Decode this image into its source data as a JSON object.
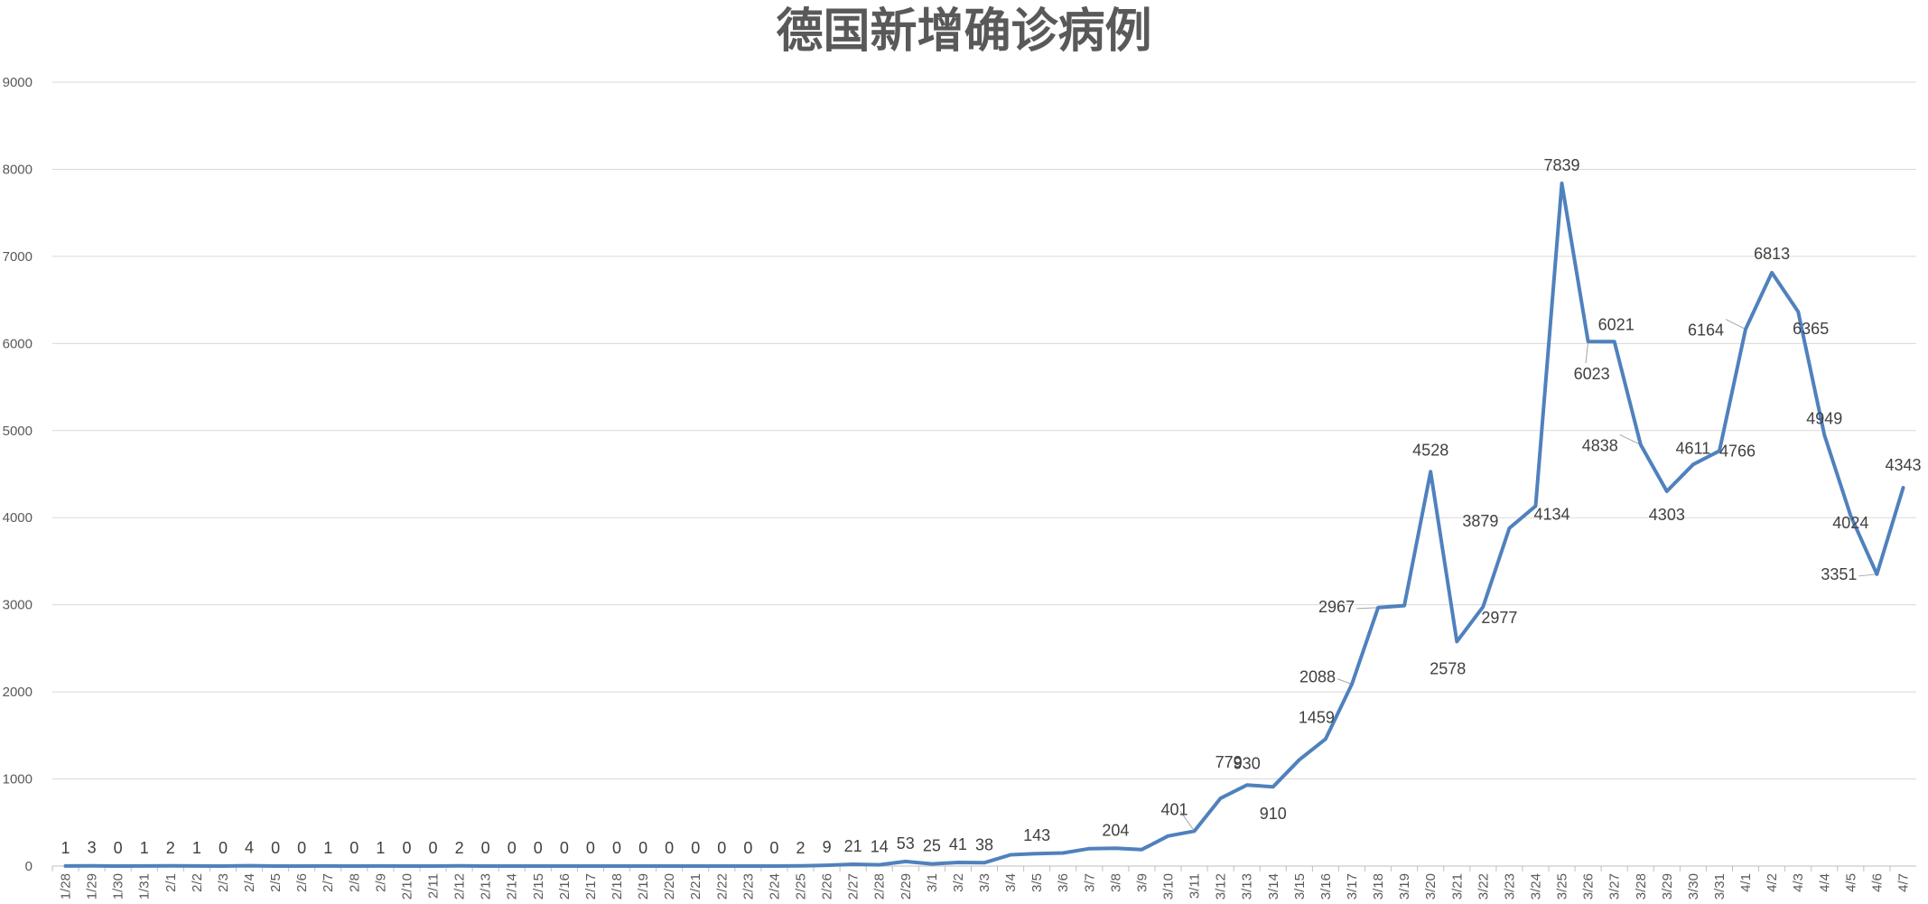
{
  "chart_data": {
    "type": "line",
    "title": "德国新增确诊病例",
    "xlabel": "",
    "ylabel": "",
    "ylim": [
      0,
      9000
    ],
    "yticks": [
      0,
      1000,
      2000,
      3000,
      4000,
      5000,
      6000,
      7000,
      8000,
      9000
    ],
    "grid": true,
    "legend": "none",
    "line_color": "#4F81BD",
    "categories": [
      "1/28",
      "1/29",
      "1/30",
      "1/31",
      "2/1",
      "2/2",
      "2/3",
      "2/4",
      "2/5",
      "2/6",
      "2/7",
      "2/8",
      "2/9",
      "2/10",
      "2/11",
      "2/12",
      "2/13",
      "2/14",
      "2/15",
      "2/16",
      "2/17",
      "2/18",
      "2/19",
      "2/20",
      "2/21",
      "2/22",
      "2/23",
      "2/24",
      "2/25",
      "2/26",
      "2/27",
      "2/28",
      "2/29",
      "3/1",
      "3/2",
      "3/3",
      "3/4",
      "3/5",
      "3/6",
      "3/7",
      "3/8",
      "3/9",
      "3/10",
      "3/11",
      "3/12",
      "3/13",
      "3/14",
      "3/15",
      "3/16",
      "3/17",
      "3/18",
      "3/19",
      "3/20",
      "3/21",
      "3/22",
      "3/23",
      "3/24",
      "3/25",
      "3/26",
      "3/27",
      "3/28",
      "3/29",
      "3/30",
      "3/31",
      "4/1",
      "4/2",
      "4/3",
      "4/4",
      "4/5",
      "4/6",
      "4/7"
    ],
    "values": [
      1,
      3,
      0,
      1,
      2,
      1,
      0,
      4,
      0,
      0,
      1,
      0,
      1,
      0,
      0,
      2,
      0,
      0,
      0,
      0,
      0,
      0,
      0,
      0,
      0,
      0,
      0,
      0,
      2,
      9,
      21,
      14,
      53,
      25,
      41,
      38,
      130,
      143,
      150,
      200,
      204,
      190,
      345,
      401,
      779,
      930,
      910,
      1220,
      1459,
      2088,
      2967,
      2990,
      4528,
      2578,
      2977,
      3879,
      4134,
      7839,
      6023,
      6021,
      4838,
      4303,
      4611,
      4766,
      6164,
      6813,
      6365,
      4949,
      4024,
      3351,
      4343
    ],
    "data_labels": [
      {
        "i": 0,
        "text": "1"
      },
      {
        "i": 1,
        "text": "3"
      },
      {
        "i": 2,
        "text": "0"
      },
      {
        "i": 3,
        "text": "1"
      },
      {
        "i": 4,
        "text": "2"
      },
      {
        "i": 5,
        "text": "1"
      },
      {
        "i": 6,
        "text": "0"
      },
      {
        "i": 7,
        "text": "4"
      },
      {
        "i": 8,
        "text": "0"
      },
      {
        "i": 9,
        "text": "0"
      },
      {
        "i": 10,
        "text": "1"
      },
      {
        "i": 11,
        "text": "0"
      },
      {
        "i": 12,
        "text": "1"
      },
      {
        "i": 13,
        "text": "0"
      },
      {
        "i": 14,
        "text": "0"
      },
      {
        "i": 15,
        "text": "2"
      },
      {
        "i": 16,
        "text": "0"
      },
      {
        "i": 17,
        "text": "0"
      },
      {
        "i": 18,
        "text": "0"
      },
      {
        "i": 19,
        "text": "0"
      },
      {
        "i": 20,
        "text": "0"
      },
      {
        "i": 21,
        "text": "0"
      },
      {
        "i": 22,
        "text": "0"
      },
      {
        "i": 23,
        "text": "0"
      },
      {
        "i": 24,
        "text": "0"
      },
      {
        "i": 25,
        "text": "0"
      },
      {
        "i": 26,
        "text": "0"
      },
      {
        "i": 27,
        "text": "0"
      },
      {
        "i": 28,
        "text": "2"
      },
      {
        "i": 29,
        "text": "9"
      },
      {
        "i": 30,
        "text": "21"
      },
      {
        "i": 31,
        "text": "14"
      },
      {
        "i": 32,
        "text": "53"
      },
      {
        "i": 33,
        "text": "25"
      },
      {
        "i": 34,
        "text": "41"
      },
      {
        "i": 35,
        "text": "38"
      },
      {
        "i": 37,
        "text": "143"
      },
      {
        "i": 40,
        "text": "204"
      },
      {
        "i": 43,
        "text": "401"
      },
      {
        "i": 44,
        "text": "779"
      },
      {
        "i": 45,
        "text": "930"
      },
      {
        "i": 46,
        "text": "910"
      },
      {
        "i": 48,
        "text": "1459"
      },
      {
        "i": 49,
        "text": "2088"
      },
      {
        "i": 50,
        "text": "2967"
      },
      {
        "i": 52,
        "text": "4528"
      },
      {
        "i": 53,
        "text": "2578"
      },
      {
        "i": 54,
        "text": "2977"
      },
      {
        "i": 55,
        "text": "3879"
      },
      {
        "i": 56,
        "text": "4134"
      },
      {
        "i": 57,
        "text": "7839"
      },
      {
        "i": 58,
        "text": "6023"
      },
      {
        "i": 59,
        "text": "6021"
      },
      {
        "i": 60,
        "text": "4838"
      },
      {
        "i": 61,
        "text": "4303"
      },
      {
        "i": 62,
        "text": "4611"
      },
      {
        "i": 63,
        "text": "4766"
      },
      {
        "i": 64,
        "text": "6164"
      },
      {
        "i": 65,
        "text": "6813"
      },
      {
        "i": 66,
        "text": "6365"
      },
      {
        "i": 67,
        "text": "4949"
      },
      {
        "i": 68,
        "text": "4024"
      },
      {
        "i": 69,
        "text": "3351"
      },
      {
        "i": 70,
        "text": "4343"
      }
    ]
  }
}
